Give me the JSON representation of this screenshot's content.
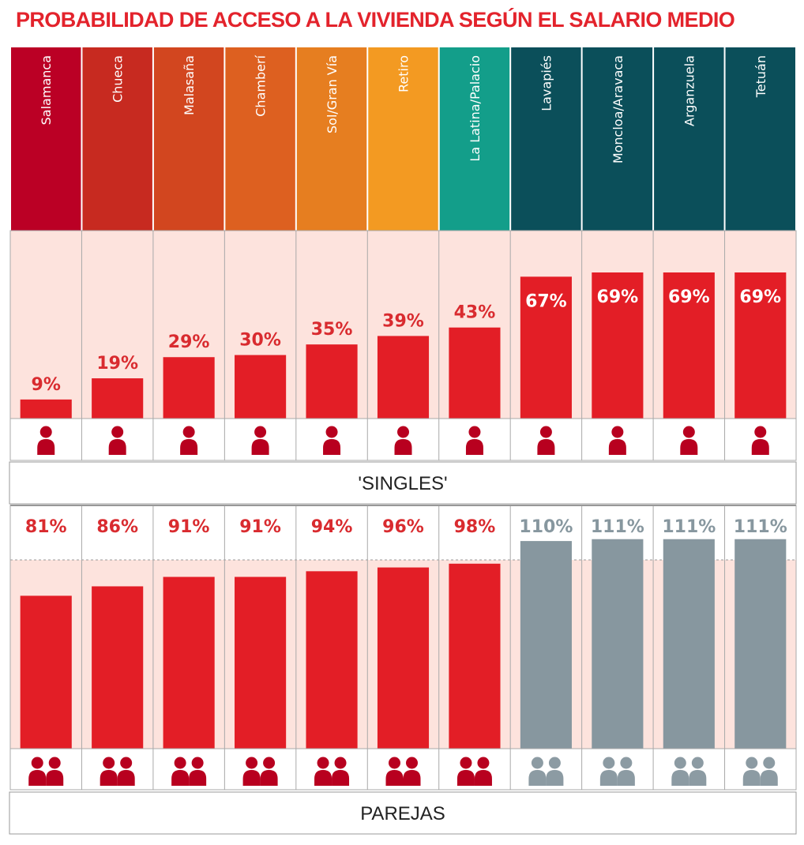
{
  "chart_data": {
    "type": "bar",
    "title": "PROBABILIDAD DE ACCESO A LA VIVIENDA SEGÚN EL SALARIO MEDIO",
    "categories": [
      "Salamanca",
      "Chueca",
      "Malasaña",
      "Chamberí",
      "Sol/Gran Vía",
      "Retiro",
      "La Latina/Palacio",
      "Lavapiés",
      "Moncloa/Aravaca",
      "Arganzuela",
      "Tetuán"
    ],
    "header_colors": [
      "#bb0025",
      "#c72a20",
      "#d2461f",
      "#dd6020",
      "#e67e20",
      "#f39a22",
      "#139e8a",
      "#0b4f5a",
      "#0b4f5a",
      "#0b4f5a",
      "#0b4f5a"
    ],
    "series": [
      {
        "name": "'SINGLES'",
        "icon": "person-icon",
        "values": [
          9,
          19,
          29,
          30,
          35,
          39,
          43,
          67,
          69,
          69,
          69
        ],
        "labels": [
          "9%",
          "19%",
          "29%",
          "30%",
          "35%",
          "39%",
          "43%",
          "67%",
          "69%",
          "69%",
          "69%"
        ],
        "ylim": [
          0,
          100
        ]
      },
      {
        "name": "PAREJAS",
        "icon": "couple-icon",
        "values": [
          81,
          86,
          91,
          91,
          94,
          96,
          98,
          110,
          111,
          111,
          111
        ],
        "labels": [
          "81%",
          "86%",
          "91%",
          "91%",
          "94%",
          "96%",
          "98%",
          "110%",
          "111%",
          "111%",
          "111%"
        ],
        "ylim": [
          0,
          111
        ],
        "reference_line": 100
      }
    ],
    "colors": {
      "bar": "#e31e26",
      "bar_over_100": "#87979f",
      "label_red": "#d92b2f",
      "label_gray": "#87979f",
      "icon_red": "#b8001f",
      "icon_gray": "#8c9ba3",
      "panel_bg": "#fde3dd"
    },
    "grid": false,
    "legend": "none"
  }
}
